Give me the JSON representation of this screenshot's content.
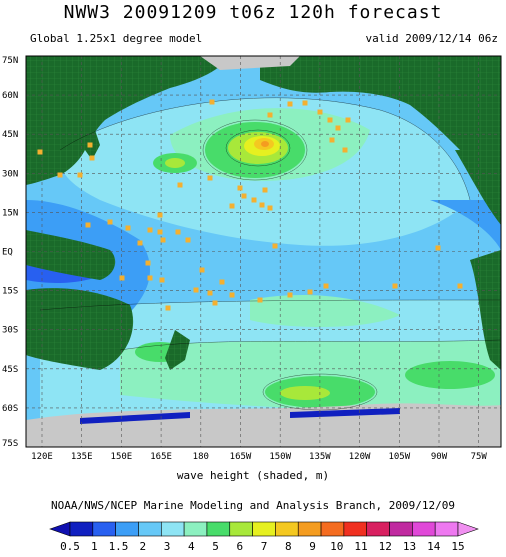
{
  "title": "NWW3 20091209 t06z 120h forecast",
  "subtitle_left": "Global 1.25x1 degree model",
  "subtitle_right": "valid 2009/12/14 06z",
  "lat_labels": [
    "75N",
    "60N",
    "45N",
    "30N",
    "15N",
    "EQ",
    "15S",
    "30S",
    "45S",
    "60S",
    "75S"
  ],
  "lon_labels": [
    "120E",
    "135E",
    "150E",
    "165E",
    "180",
    "165W",
    "150W",
    "135W",
    "120W",
    "105W",
    "90W",
    "75W"
  ],
  "caption": "wave height (shaded, m)",
  "footer": "NOAA/NWS/NCEP Marine Modeling and Analysis Branch, 2009/12/09",
  "colorbar": {
    "labels": [
      "0.5",
      "1",
      "1.5",
      "2",
      "3",
      "4",
      "5",
      "6",
      "7",
      "8",
      "9",
      "10",
      "11",
      "12",
      "13",
      "14",
      "15"
    ],
    "colors": [
      "#1020c0",
      "#2860f0",
      "#3c9ef6",
      "#66c8f7",
      "#8ee4f4",
      "#8cf0c0",
      "#48dc6a",
      "#a8e83a",
      "#e6f020",
      "#f4c820",
      "#f49c20",
      "#f46c20",
      "#f03020",
      "#d82060",
      "#c02aa0",
      "#e048d8",
      "#ee78f0"
    ],
    "arrow_left": "#1010b0",
    "arrow_right": "#f090f0"
  },
  "colors": {
    "land": "#1a6a2a",
    "ice": "#c8c8c8",
    "buoy": "#f4b030",
    "ocean_base": "#66c8f7"
  }
}
